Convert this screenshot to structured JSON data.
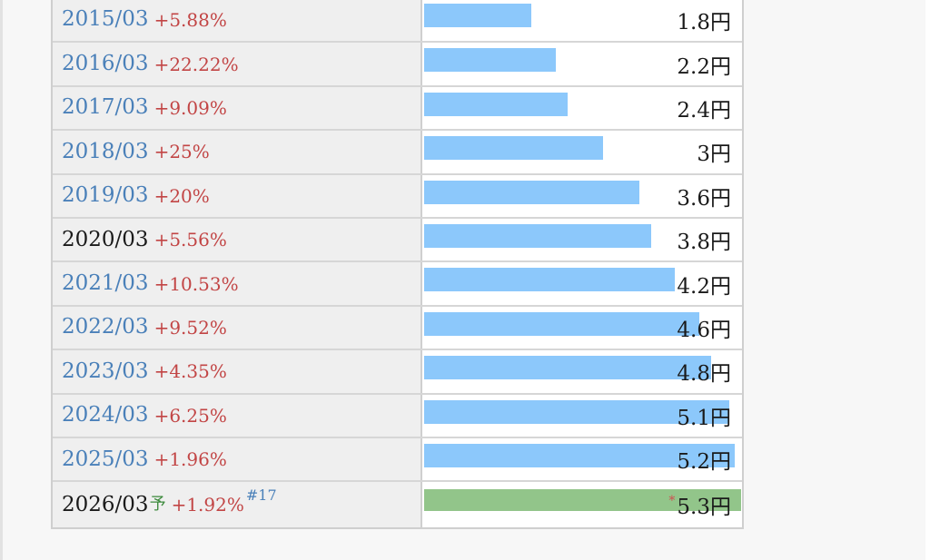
{
  "rows": [
    {
      "year": "2015/03",
      "change": "+5.88%",
      "value": 1.8,
      "label": "1.8円",
      "link": true
    },
    {
      "year": "2016/03",
      "change": "+22.22%",
      "value": 2.2,
      "label": "2.2円",
      "link": true
    },
    {
      "year": "2017/03",
      "change": "+9.09%",
      "value": 2.4,
      "label": "2.4円",
      "link": true
    },
    {
      "year": "2018/03",
      "change": "+25%",
      "value": 3,
      "label": "3円",
      "link": true
    },
    {
      "year": "2019/03",
      "change": "+20%",
      "value": 3.6,
      "label": "3.6円",
      "link": true
    },
    {
      "year": "2020/03",
      "change": "+5.56%",
      "value": 3.8,
      "label": "3.8円",
      "link": false
    },
    {
      "year": "2021/03",
      "change": "+10.53%",
      "value": 4.2,
      "label": "4.2円",
      "link": true
    },
    {
      "year": "2022/03",
      "change": "+9.52%",
      "value": 4.6,
      "label": "4.6円",
      "link": true
    },
    {
      "year": "2023/03",
      "change": "+4.35%",
      "value": 4.8,
      "label": "4.8円",
      "link": true
    },
    {
      "year": "2024/03",
      "change": "+6.25%",
      "value": 5.1,
      "label": "5.1円",
      "link": true
    },
    {
      "year": "2025/03",
      "change": "+1.96%",
      "value": 5.2,
      "label": "5.2円",
      "link": true
    },
    {
      "year": "2026/03",
      "forecast_mark": "予",
      "change": "+1.92%",
      "note": "#17",
      "value": 5.3,
      "label": "5.3円",
      "asterisk": "*",
      "link": false,
      "forecast": true
    }
  ],
  "colors": {
    "bar": "#8cc8fb",
    "forecast_bar": "#92c58a",
    "link": "#4a80b9",
    "change": "#c24545"
  }
}
